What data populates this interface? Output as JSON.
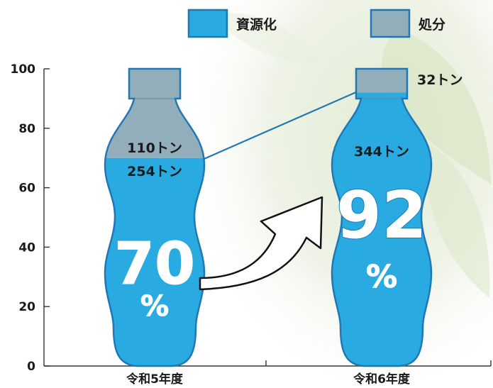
{
  "chart_data": {
    "type": "bar",
    "categories": [
      "令和5年度",
      "令和6年度"
    ],
    "series": [
      {
        "name": "資源化",
        "values": [
          70,
          92
        ],
        "amounts": [
          "254トン",
          "344トン"
        ],
        "color": "#29abe2"
      },
      {
        "name": "処分",
        "values": [
          30,
          8
        ],
        "amounts": [
          "110トン",
          "32トン"
        ],
        "color": "#93aebb"
      }
    ],
    "ylim": [
      0,
      100
    ],
    "yticks": [
      "0",
      "20",
      "40",
      "60",
      "80",
      "100"
    ],
    "stacked": true,
    "percent_labels": [
      "70",
      "92"
    ],
    "percent_unit": "%",
    "legend_position": "top-right",
    "grid": false
  }
}
